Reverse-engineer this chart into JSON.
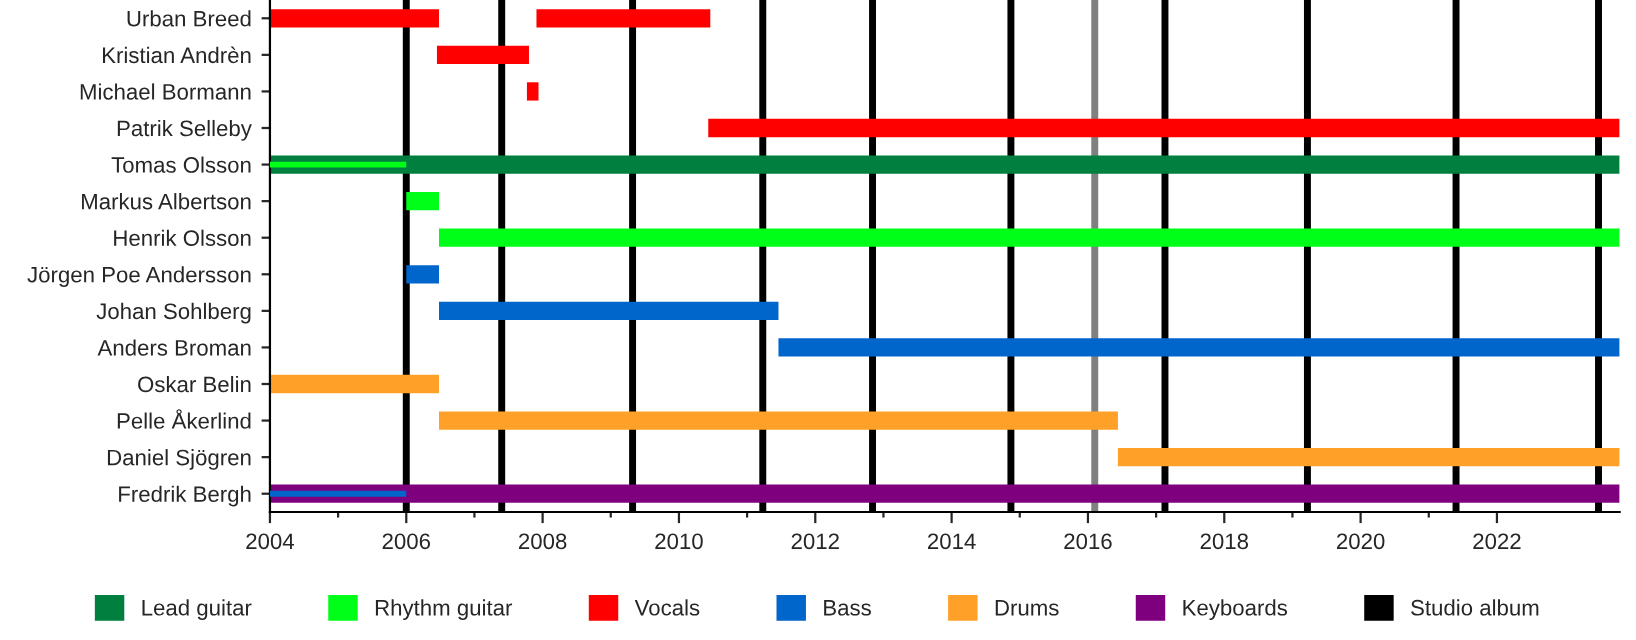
{
  "chart_data": {
    "type": "bar",
    "orientation": "horizontal",
    "categories": [
      "Urban Breed",
      "Kristian Andrèn",
      "Michael Bormann",
      "Patrik Selleby",
      "Tomas Olsson",
      "Markus Albertson",
      "Henrik Olsson",
      "Jörgen Poe Andersson",
      "Johan Sohlberg",
      "Anders Broman",
      "Oskar Belin",
      "Pelle Åkerlind",
      "Daniel Sjögren",
      "Fredrik Bergh"
    ],
    "series": [
      {
        "name": "Lead guitar",
        "color": "#007f3f",
        "base": [
          null,
          null,
          null,
          null,
          2004,
          null,
          null,
          null,
          null,
          null,
          null,
          null,
          null,
          null
        ],
        "values": [
          null,
          null,
          null,
          null,
          19.8,
          null,
          null,
          null,
          null,
          null,
          null,
          null,
          null,
          null
        ]
      },
      {
        "name": "Rhythm guitar",
        "color": "#00ff18",
        "base": [
          null,
          null,
          null,
          null,
          2004,
          2006.0,
          2006.48,
          null,
          null,
          null,
          null,
          null,
          null,
          null
        ],
        "values": [
          null,
          null,
          null,
          null,
          2.0,
          0.48,
          17.32,
          null,
          null,
          null,
          null,
          null,
          null,
          null
        ]
      },
      {
        "name": "Vocals",
        "color": "#ff0000",
        "base": [
          2004,
          2006.45,
          2007.77,
          2010.43,
          null,
          null,
          null,
          null,
          null,
          null,
          null,
          null,
          null,
          null
        ],
        "values": [
          2.48,
          1.35,
          0.17,
          13.37,
          null,
          null,
          null,
          null,
          null,
          null,
          null,
          null,
          null,
          null
        ]
      },
      {
        "color": "#ff0000",
        "base": [
          2007.91,
          null,
          null,
          null,
          null,
          null,
          null,
          null,
          null,
          null,
          null,
          null,
          null,
          null
        ],
        "values": [
          2.55,
          null,
          null,
          null,
          null,
          null,
          null,
          null,
          null,
          null,
          null,
          null,
          null,
          null
        ]
      },
      {
        "name": "Bass",
        "color": "#0066cc",
        "base": [
          null,
          null,
          null,
          null,
          null,
          null,
          null,
          2006.0,
          2006.48,
          2011.46,
          null,
          null,
          null,
          2004
        ],
        "values": [
          null,
          null,
          null,
          null,
          null,
          null,
          null,
          0.48,
          4.98,
          12.34,
          null,
          null,
          null,
          2.0
        ]
      },
      {
        "name": "Drums",
        "color": "#ffa028",
        "base": [
          null,
          null,
          null,
          null,
          null,
          null,
          null,
          null,
          null,
          null,
          2004,
          2006.48,
          2016.44,
          null
        ],
        "values": [
          null,
          null,
          null,
          null,
          null,
          null,
          null,
          null,
          null,
          null,
          2.48,
          9.96,
          7.36,
          null
        ]
      },
      {
        "name": "Keyboards",
        "color": "#7f007f",
        "base": [
          null,
          null,
          null,
          null,
          null,
          null,
          null,
          null,
          null,
          null,
          null,
          null,
          null,
          2004
        ],
        "values": [
          null,
          null,
          null,
          null,
          null,
          null,
          null,
          null,
          null,
          null,
          null,
          null,
          null,
          19.8
        ]
      }
    ],
    "xlim": [
      2004,
      2023.8
    ],
    "xticks": [
      2004,
      2006,
      2008,
      2010,
      2012,
      2014,
      2016,
      2018,
      2020,
      2022
    ],
    "ref_lines": [
      {
        "axis": "x",
        "value": 2006.0,
        "label": "Studio album",
        "color": "#000000"
      },
      {
        "axis": "x",
        "value": 2007.4,
        "color": "#000000"
      },
      {
        "axis": "x",
        "value": 2009.32,
        "color": "#000000"
      },
      {
        "axis": "x",
        "value": 2011.23,
        "color": "#000000"
      },
      {
        "axis": "x",
        "value": 2012.84,
        "color": "#000000"
      },
      {
        "axis": "x",
        "value": 2014.87,
        "color": "#000000"
      },
      {
        "axis": "x",
        "value": 2016.1,
        "color": "#808080"
      },
      {
        "axis": "x",
        "value": 2017.13,
        "color": "#000000"
      },
      {
        "axis": "x",
        "value": 2019.22,
        "color": "#000000"
      },
      {
        "axis": "x",
        "value": 2021.4,
        "color": "#000000"
      },
      {
        "axis": "x",
        "value": 2023.49,
        "color": "#000000"
      }
    ],
    "grid": false,
    "legend": "bottom"
  }
}
